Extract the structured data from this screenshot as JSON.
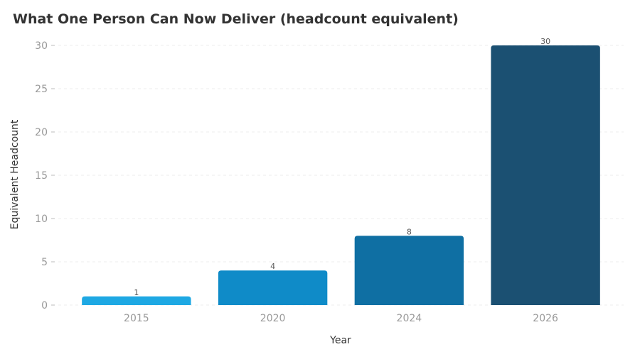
{
  "chart_data": {
    "type": "bar",
    "title": "What One Person Can Now Deliver (headcount equivalent)",
    "xlabel": "Year",
    "ylabel": "Equivalent Headcount",
    "categories": [
      "2015",
      "2020",
      "2024",
      "2026"
    ],
    "values": [
      1,
      4,
      8,
      30
    ],
    "data_labels": [
      "1",
      "4",
      "8",
      "30"
    ],
    "yticks": [
      0,
      5,
      10,
      15,
      20,
      25,
      30
    ],
    "ytick_labels": [
      "0",
      "5",
      "10",
      "15",
      "20",
      "25",
      "30"
    ],
    "ylim": [
      0,
      30
    ],
    "grid": true,
    "colors": [
      "#1ea8e3",
      "#0f8bc8",
      "#0f6fa3",
      "#1b5072"
    ],
    "axis_text_color": "#999999",
    "label_color": "#333333",
    "grid_color": "#eeeeee"
  }
}
